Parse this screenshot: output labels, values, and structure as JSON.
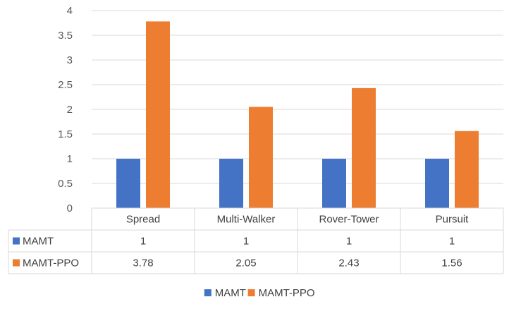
{
  "chart_data": {
    "type": "bar",
    "categories": [
      "Spread",
      "Multi-Walker",
      "Rover-Tower",
      "Pursuit"
    ],
    "series": [
      {
        "name": "MAMT",
        "values": [
          1,
          1,
          1,
          1
        ],
        "color": "#4472C4"
      },
      {
        "name": "MAMT-PPO",
        "values": [
          3.78,
          2.05,
          2.43,
          1.56
        ],
        "color": "#ED7D31"
      }
    ],
    "table_values": [
      [
        "1",
        "1",
        "1",
        "1"
      ],
      [
        "3.78",
        "2.05",
        "2.43",
        "1.56"
      ]
    ],
    "yticks": [
      "0",
      "0.5",
      "1",
      "1.5",
      "2",
      "2.5",
      "3",
      "3.5",
      "4"
    ],
    "ylim": [
      0,
      4
    ],
    "grid": true,
    "legend": "bottom",
    "data_table": true,
    "title": "",
    "xlabel": "",
    "ylabel": ""
  }
}
